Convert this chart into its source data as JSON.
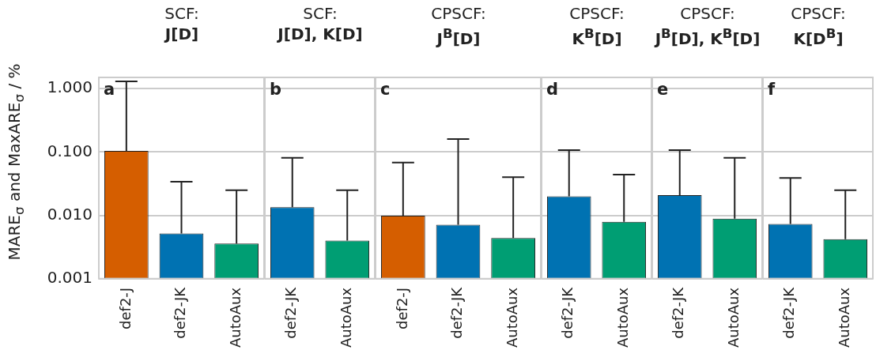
{
  "chart_data": [
    {
      "type": "bar",
      "title": "SCF:",
      "subtitle": "J[D]",
      "ylabel": "MARE$_{σ}$ and MaxARE$_{σ}$ / %",
      "categories": [
        "def2-J",
        "def2-JK",
        "AutoAux"
      ],
      "values": [
        0.104,
        0.0052,
        0.0036
      ],
      "colors": [
        "#d55e00",
        "#0072b2",
        "#009e73"
      ],
      "errors": [
        [
          0.104,
          1.3
        ],
        [
          0.0052,
          0.034
        ],
        [
          0.0036,
          0.025
        ]
      ],
      "log": "y",
      "ylim": [
        0.001,
        1.5
      ],
      "yticks": [
        {
          "value": 0.001,
          "label": "0.001"
        },
        {
          "value": 0.01,
          "label": "0.010"
        },
        {
          "value": 0.1,
          "label": "0.100"
        },
        {
          "value": 1,
          "label": "1.000"
        }
      ],
      "grid": "y",
      "annotations": [
        "a"
      ]
    },
    {
      "type": "bar",
      "title": "SCF:",
      "subtitle": "J[D], K[D]",
      "categories": [
        "def2-JK",
        "AutoAux"
      ],
      "values": [
        0.0135,
        0.004
      ],
      "colors": [
        "#0072b2",
        "#009e73"
      ],
      "errors": [
        [
          0.0135,
          0.081
        ],
        [
          0.004,
          0.025
        ]
      ],
      "log": "y",
      "ylim": [
        0.001,
        1.5
      ],
      "tick_labels": "x",
      "grid": "y",
      "annotations": [
        "b"
      ]
    },
    {
      "type": "bar",
      "title": "CPSCF:",
      "subtitle": "J$^{B}$[D]",
      "categories": [
        "def2-J",
        "def2-JK",
        "AutoAux"
      ],
      "values": [
        0.0099,
        0.0071,
        0.0044
      ],
      "colors": [
        "#d55e00",
        "#0072b2",
        "#009e73"
      ],
      "errors": [
        [
          0.0099,
          0.068
        ],
        [
          0.0071,
          0.16
        ],
        [
          0.0044,
          0.04
        ]
      ],
      "log": "y",
      "ylim": [
        0.001,
        1.5
      ],
      "tick_labels": "x",
      "grid": "y",
      "annotations": [
        "c"
      ]
    },
    {
      "type": "bar",
      "title": "CPSCF:",
      "subtitle": "K$^{B}$[D]",
      "categories": [
        "def2-JK",
        "AutoAux"
      ],
      "values": [
        0.02,
        0.0079
      ],
      "colors": [
        "#0072b2",
        "#009e73"
      ],
      "errors": [
        [
          0.02,
          0.107
        ],
        [
          0.0079,
          0.044
        ]
      ],
      "log": "y",
      "ylim": [
        0.001,
        1.5
      ],
      "tick_labels": "x",
      "grid": "y",
      "annotations": [
        "d"
      ]
    },
    {
      "type": "bar",
      "title": "CPSCF:",
      "subtitle": "J$^{B}$[D], K$^{B}$[D]",
      "categories": [
        "def2-JK",
        "AutoAux"
      ],
      "values": [
        0.0208,
        0.0089
      ],
      "colors": [
        "#0072b2",
        "#009e73"
      ],
      "errors": [
        [
          0.0208,
          0.107
        ],
        [
          0.0089,
          0.081
        ]
      ],
      "log": "y",
      "ylim": [
        0.001,
        1.5
      ],
      "tick_labels": "x",
      "grid": "y",
      "annotations": [
        "e"
      ]
    },
    {
      "type": "bar",
      "title": "CPSCF:",
      "subtitle": "K[D$^{B}$]",
      "categories": [
        "def2-JK",
        "AutoAux"
      ],
      "values": [
        0.0073,
        0.0042
      ],
      "colors": [
        "#0072b2",
        "#009e73"
      ],
      "errors": [
        [
          0.0073,
          0.039
        ],
        [
          0.0042,
          0.025
        ]
      ],
      "log": "y",
      "ylim": [
        0.001,
        1.5
      ],
      "tick_labels": "x",
      "grid": "y",
      "annotations": [
        "f"
      ]
    }
  ]
}
